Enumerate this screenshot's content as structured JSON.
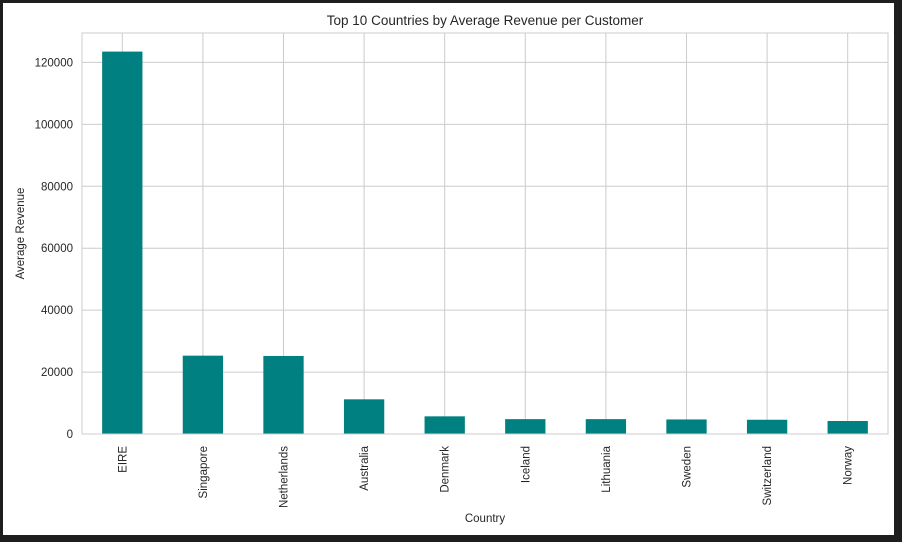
{
  "chart_data": {
    "type": "bar",
    "title": "Top 10 Countries by Average Revenue per Customer",
    "xlabel": "Country",
    "ylabel": "Average Revenue",
    "categories": [
      "EIRE",
      "Singapore",
      "Netherlands",
      "Australia",
      "Denmark",
      "Iceland",
      "Lithuania",
      "Sweden",
      "Switzerland",
      "Norway"
    ],
    "values": [
      123500,
      25300,
      25200,
      11200,
      5700,
      4800,
      4800,
      4700,
      4600,
      4200
    ],
    "ylim": [
      0,
      129500
    ],
    "yticks": [
      0,
      20000,
      40000,
      60000,
      80000,
      100000,
      120000
    ],
    "ytick_labels": [
      "0",
      "20000",
      "40000",
      "60000",
      "80000",
      "100000",
      "120000"
    ],
    "grid": true,
    "bar_color": "#008080",
    "grid_color": "#cccccc",
    "axes_edge_color": "#cccccc"
  }
}
